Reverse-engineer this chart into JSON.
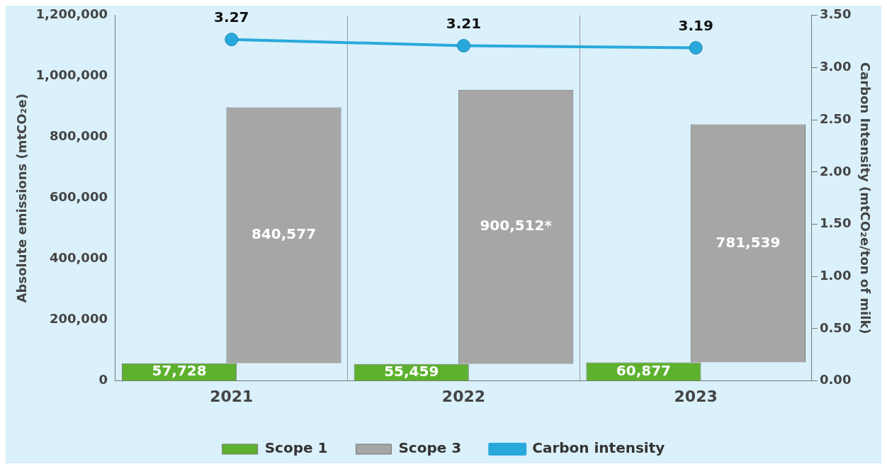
{
  "chart_data": {
    "type": "bar",
    "categories": [
      "2021",
      "2022",
      "2023"
    ],
    "ylabel": "Absolute emissions (mtCO₂e)",
    "y2label": "Carbon Intensity (mtCO₂e/ton of milk)",
    "series": [
      {
        "name": "Scope 1",
        "color": "#5db12f",
        "values": [
          57728,
          55459,
          60877
        ],
        "value_labels": [
          "57,728",
          "55,459",
          "60,877"
        ]
      },
      {
        "name": "Scope 3",
        "color": "#a6a6a6",
        "values": [
          840577,
          900512,
          781539
        ],
        "base": [
          57728,
          55459,
          60877
        ],
        "value_labels": [
          "840,577",
          "900,512*",
          "781,539"
        ]
      },
      {
        "name": "Carbon intensity",
        "type": "line",
        "axis": "y2",
        "color": "#29a9db",
        "values": [
          3.27,
          3.21,
          3.19
        ],
        "value_labels": [
          "3.27",
          "3.21",
          "3.19"
        ]
      }
    ],
    "ylim": [
      0,
      1200000
    ],
    "yticks": [
      {
        "value": 0,
        "label": "0"
      },
      {
        "value": 200000,
        "label": "200,000"
      },
      {
        "value": 400000,
        "label": "400,000"
      },
      {
        "value": 600000,
        "label": "600,000"
      },
      {
        "value": 800000,
        "label": "800,000"
      },
      {
        "value": 1000000,
        "label": "1,000,000"
      },
      {
        "value": 1200000,
        "label": "1,200,000"
      }
    ],
    "y2lim": [
      0,
      3.5
    ],
    "y2ticks": [
      {
        "value": 0,
        "label": "0.00"
      },
      {
        "value": 0.5,
        "label": "0.50"
      },
      {
        "value": 1,
        "label": "1.00"
      },
      {
        "value": 1.5,
        "label": "1.50"
      },
      {
        "value": 2,
        "label": "2.00"
      },
      {
        "value": 2.5,
        "label": "2.50"
      },
      {
        "value": 3,
        "label": "3.00"
      },
      {
        "value": 3.5,
        "label": "3.50"
      }
    ],
    "grid": "x",
    "legend": "bottom",
    "marker": "circle"
  }
}
